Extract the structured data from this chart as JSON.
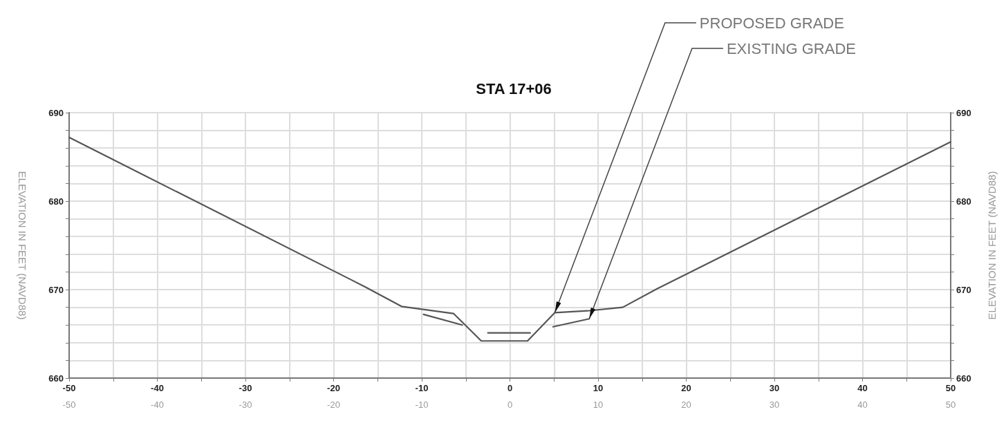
{
  "chart_data": {
    "type": "line",
    "title": "STA 17+06",
    "ylabel": "ELEVATION IN FEET (NAVD88)",
    "y2label": "ELEVATION IN FEET (NAVD88)",
    "series": [
      {
        "color": "#555555",
        "x": [
          -50,
          -16.4,
          -12.3,
          -6.4,
          -3.25,
          2.0,
          5.1,
          8.8,
          12.8,
          16.7,
          50
        ],
        "values": [
          687.2,
          670.3,
          668.1,
          667.3,
          664.2,
          664.2,
          667.4,
          667.6,
          668.0,
          670.1,
          686.7
        ]
      },
      {
        "color": "#555555",
        "x": [
          -9.8,
          -5.4,
          -4.0,
          -2.5,
          2.3,
          3.6,
          4.9,
          9.0
        ],
        "values": [
          667.2,
          666.0,
          null,
          665.1,
          665.1,
          null,
          665.8,
          666.7
        ]
      }
    ],
    "annotations": [
      {
        "text": "PROPOSED GRADE",
        "x": 5.1,
        "y": 667.4
      },
      {
        "text": "EXISTING GRADE",
        "x": 9.0,
        "y": 666.7
      }
    ],
    "xlim": [
      -50,
      50
    ],
    "xticks": [
      -50,
      {
        "value": -45,
        "label": null
      },
      -40,
      {
        "value": -35,
        "label": null
      },
      -30,
      {
        "value": -25,
        "label": null
      },
      -20,
      {
        "value": -15,
        "label": null
      },
      -10,
      {
        "value": -5,
        "label": null
      },
      0,
      {
        "value": 5,
        "label": null
      },
      10,
      {
        "value": 15,
        "label": null
      },
      20,
      {
        "value": 25,
        "label": null
      },
      30,
      {
        "value": 35,
        "label": null
      },
      40,
      {
        "value": 45,
        "label": null
      },
      50
    ],
    "x2lim": [
      -50,
      50
    ],
    "x2ticks": [
      -50,
      -40,
      -30,
      -20,
      -10,
      0,
      10,
      20,
      30,
      40,
      50
    ],
    "ylim": [
      660,
      690
    ],
    "yticks": [
      660,
      {
        "value": 662,
        "label": null
      },
      {
        "value": 664,
        "label": null
      },
      {
        "value": 666,
        "label": null
      },
      {
        "value": 668,
        "label": null
      },
      670,
      {
        "value": 672,
        "label": null
      },
      {
        "value": 674,
        "label": null
      },
      {
        "value": 676,
        "label": null
      },
      {
        "value": 678,
        "label": null
      },
      680,
      {
        "value": 682,
        "label": null
      },
      {
        "value": 684,
        "label": null
      },
      {
        "value": 686,
        "label": null
      },
      {
        "value": 688,
        "label": null
      },
      690
    ],
    "y2lim": [
      660,
      690
    ],
    "y2ticks": [
      660,
      {
        "value": 662,
        "label": null
      },
      {
        "value": 664,
        "label": null
      },
      {
        "value": 666,
        "label": null
      },
      {
        "value": 668,
        "label": null
      },
      670,
      {
        "value": 672,
        "label": null
      },
      {
        "value": 674,
        "label": null
      },
      {
        "value": 676,
        "label": null
      },
      {
        "value": 678,
        "label": null
      },
      680,
      {
        "value": 682,
        "label": null
      },
      {
        "value": 684,
        "label": null
      },
      {
        "value": 686,
        "label": null
      },
      {
        "value": 688,
        "label": null
      },
      690
    ],
    "grid": true,
    "marker": "none",
    "line_style": "solid"
  }
}
